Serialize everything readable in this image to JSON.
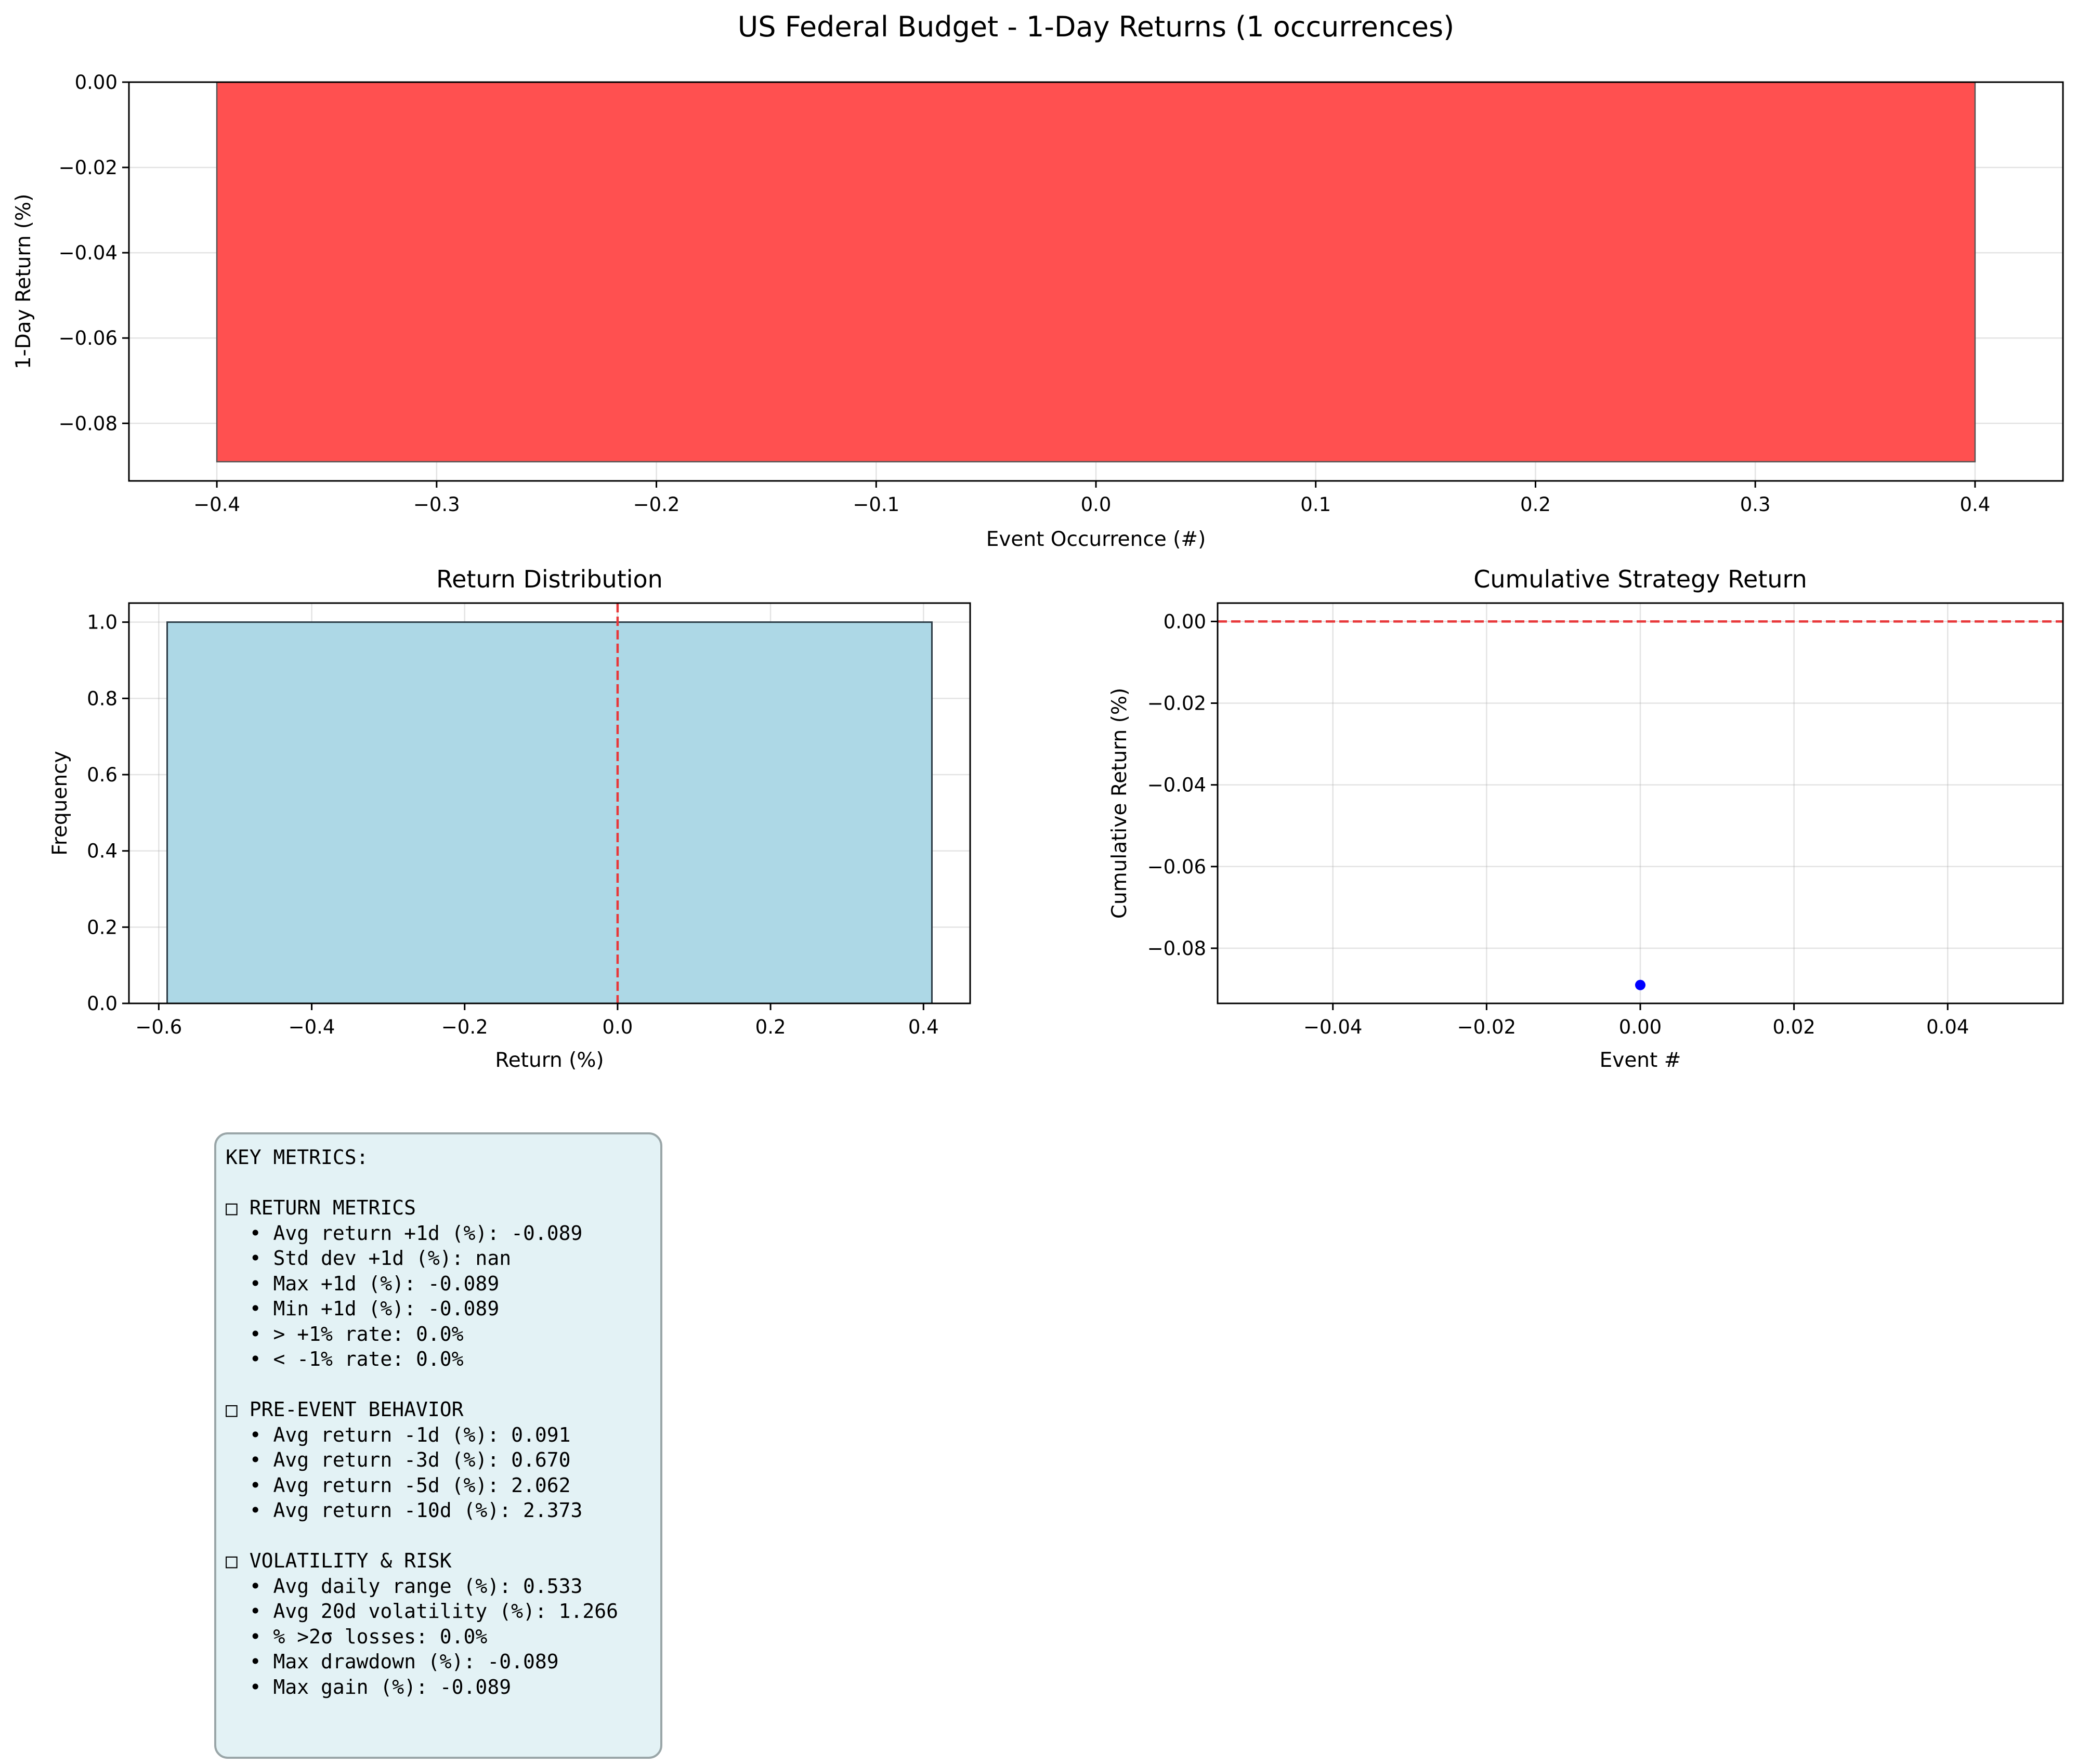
{
  "chart_data": [
    {
      "type": "bar",
      "title": "US Federal Budget - 1-Day Returns (1 occurrences)",
      "xlabel": "Event Occurrence (#)",
      "ylabel": "1-Day Return (%)",
      "x": [
        0
      ],
      "values": [
        -0.089
      ],
      "bar_width": 0.8,
      "xlim": [
        -0.44,
        0.44
      ],
      "ylim": [
        -0.0935,
        0.0
      ],
      "xticks": [
        -0.4,
        -0.3,
        -0.2,
        -0.1,
        0.0,
        0.1,
        0.2,
        0.3,
        0.4
      ],
      "xtick_labels": [
        "−0.4",
        "−0.3",
        "−0.2",
        "−0.1",
        "0.0",
        "0.1",
        "0.2",
        "0.3",
        "0.4"
      ],
      "yticks": [
        0.0,
        -0.02,
        -0.04,
        -0.06,
        -0.08
      ],
      "ytick_labels": [
        "0.00",
        "−0.02",
        "−0.04",
        "−0.06",
        "−0.08"
      ],
      "bar_color": "#ff5050",
      "grid": true
    },
    {
      "type": "bar",
      "title": "Return Distribution",
      "xlabel": "Return (%)",
      "ylabel": "Frequency",
      "bins": [
        [
          -0.589,
          0.411
        ]
      ],
      "values": [
        1
      ],
      "reference_line_x": 0.0,
      "xlim": [
        -0.639,
        0.461
      ],
      "ylim": [
        0.0,
        1.05
      ],
      "xticks": [
        -0.6,
        -0.4,
        -0.2,
        0.0,
        0.2,
        0.4
      ],
      "xtick_labels": [
        "−0.6",
        "−0.4",
        "−0.2",
        "0.0",
        "0.2",
        "0.4"
      ],
      "yticks": [
        0.0,
        0.2,
        0.4,
        0.6,
        0.8,
        1.0
      ],
      "ytick_labels": [
        "0.0",
        "0.2",
        "0.4",
        "0.6",
        "0.8",
        "1.0"
      ],
      "bar_color": "#add8e6",
      "grid": true
    },
    {
      "type": "line",
      "title": "Cumulative Strategy Return",
      "xlabel": "Event #",
      "ylabel": "Cumulative Return (%)",
      "x": [
        0
      ],
      "y": [
        -0.089
      ],
      "reference_line_y": 0.0,
      "xlim": [
        -0.055,
        0.055
      ],
      "ylim": [
        -0.0935,
        0.0045
      ],
      "xticks": [
        -0.04,
        -0.02,
        0.0,
        0.02,
        0.04
      ],
      "xtick_labels": [
        "−0.04",
        "−0.02",
        "0.00",
        "0.02",
        "0.04"
      ],
      "yticks": [
        0.0,
        -0.02,
        -0.04,
        -0.06,
        -0.08
      ],
      "ytick_labels": [
        "0.00",
        "−0.02",
        "−0.04",
        "−0.06",
        "−0.08"
      ],
      "marker_color": "#0000ff",
      "grid": true
    }
  ],
  "metrics": {
    "lines": [
      "KEY METRICS:",
      "",
      "□ RETURN METRICS",
      "  • Avg return +1d (%): -0.089",
      "  • Std dev +1d (%): nan",
      "  • Max +1d (%): -0.089",
      "  • Min +1d (%): -0.089",
      "  • > +1% rate: 0.0%",
      "  • < -1% rate: 0.0%",
      "",
      "□ PRE-EVENT BEHAVIOR",
      "  • Avg return -1d (%): 0.091",
      "  • Avg return -3d (%): 0.670",
      "  • Avg return -5d (%): 2.062",
      "  • Avg return -10d (%): 2.373",
      "",
      "□ VOLATILITY & RISK",
      "  • Avg daily range (%): 0.533",
      "  • Avg 20d volatility (%): 1.266",
      "  • % >2σ losses: 0.0%",
      "  • Max drawdown (%): -0.089",
      "  • Max gain (%): -0.089"
    ]
  }
}
